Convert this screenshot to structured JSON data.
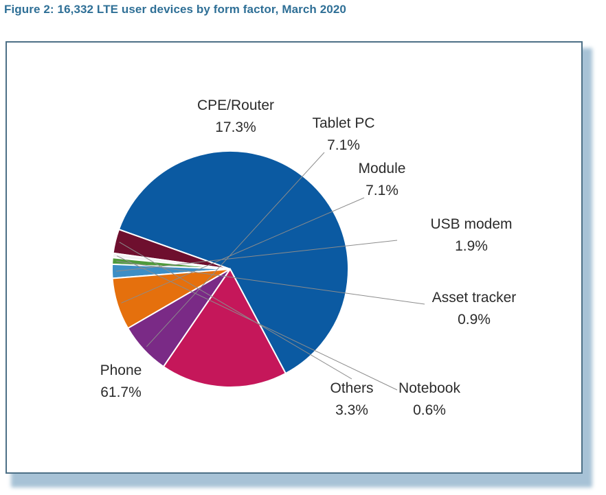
{
  "figure": {
    "title": "Figure 2: 16,332 LTE user devices by form factor, March 2020"
  },
  "colors": {
    "title": "#2e6f96",
    "frame_border": "#4c6f86",
    "leader": "#8c8c8c"
  },
  "chart_data": {
    "type": "pie",
    "title": "Figure 2: 16,332 LTE user devices by form factor, March 2020",
    "slices": [
      {
        "name": "Phone",
        "value": 61.7,
        "label": "61.7%",
        "color": "#0b5aa2"
      },
      {
        "name": "Others",
        "value": 3.3,
        "label": "3.3%",
        "color": "#6e0f2e"
      },
      {
        "name": "Notebook",
        "value": 0.6,
        "label": "0.6%",
        "color": "#f2f2f2"
      },
      {
        "name": "Asset tracker",
        "value": 0.9,
        "label": "0.9%",
        "color": "#4f9a3c"
      },
      {
        "name": "USB modem",
        "value": 1.9,
        "label": "1.9%",
        "color": "#3d8ec5"
      },
      {
        "name": "Module",
        "value": 7.1,
        "label": "7.1%",
        "color": "#e5700d"
      },
      {
        "name": "Tablet PC",
        "value": 7.1,
        "label": "7.1%",
        "color": "#7a2a86"
      },
      {
        "name": "CPE/Router",
        "value": 17.3,
        "label": "17.3%",
        "color": "#c5175a"
      }
    ],
    "start_angle_deg": 298,
    "direction": "counterclockwise"
  }
}
